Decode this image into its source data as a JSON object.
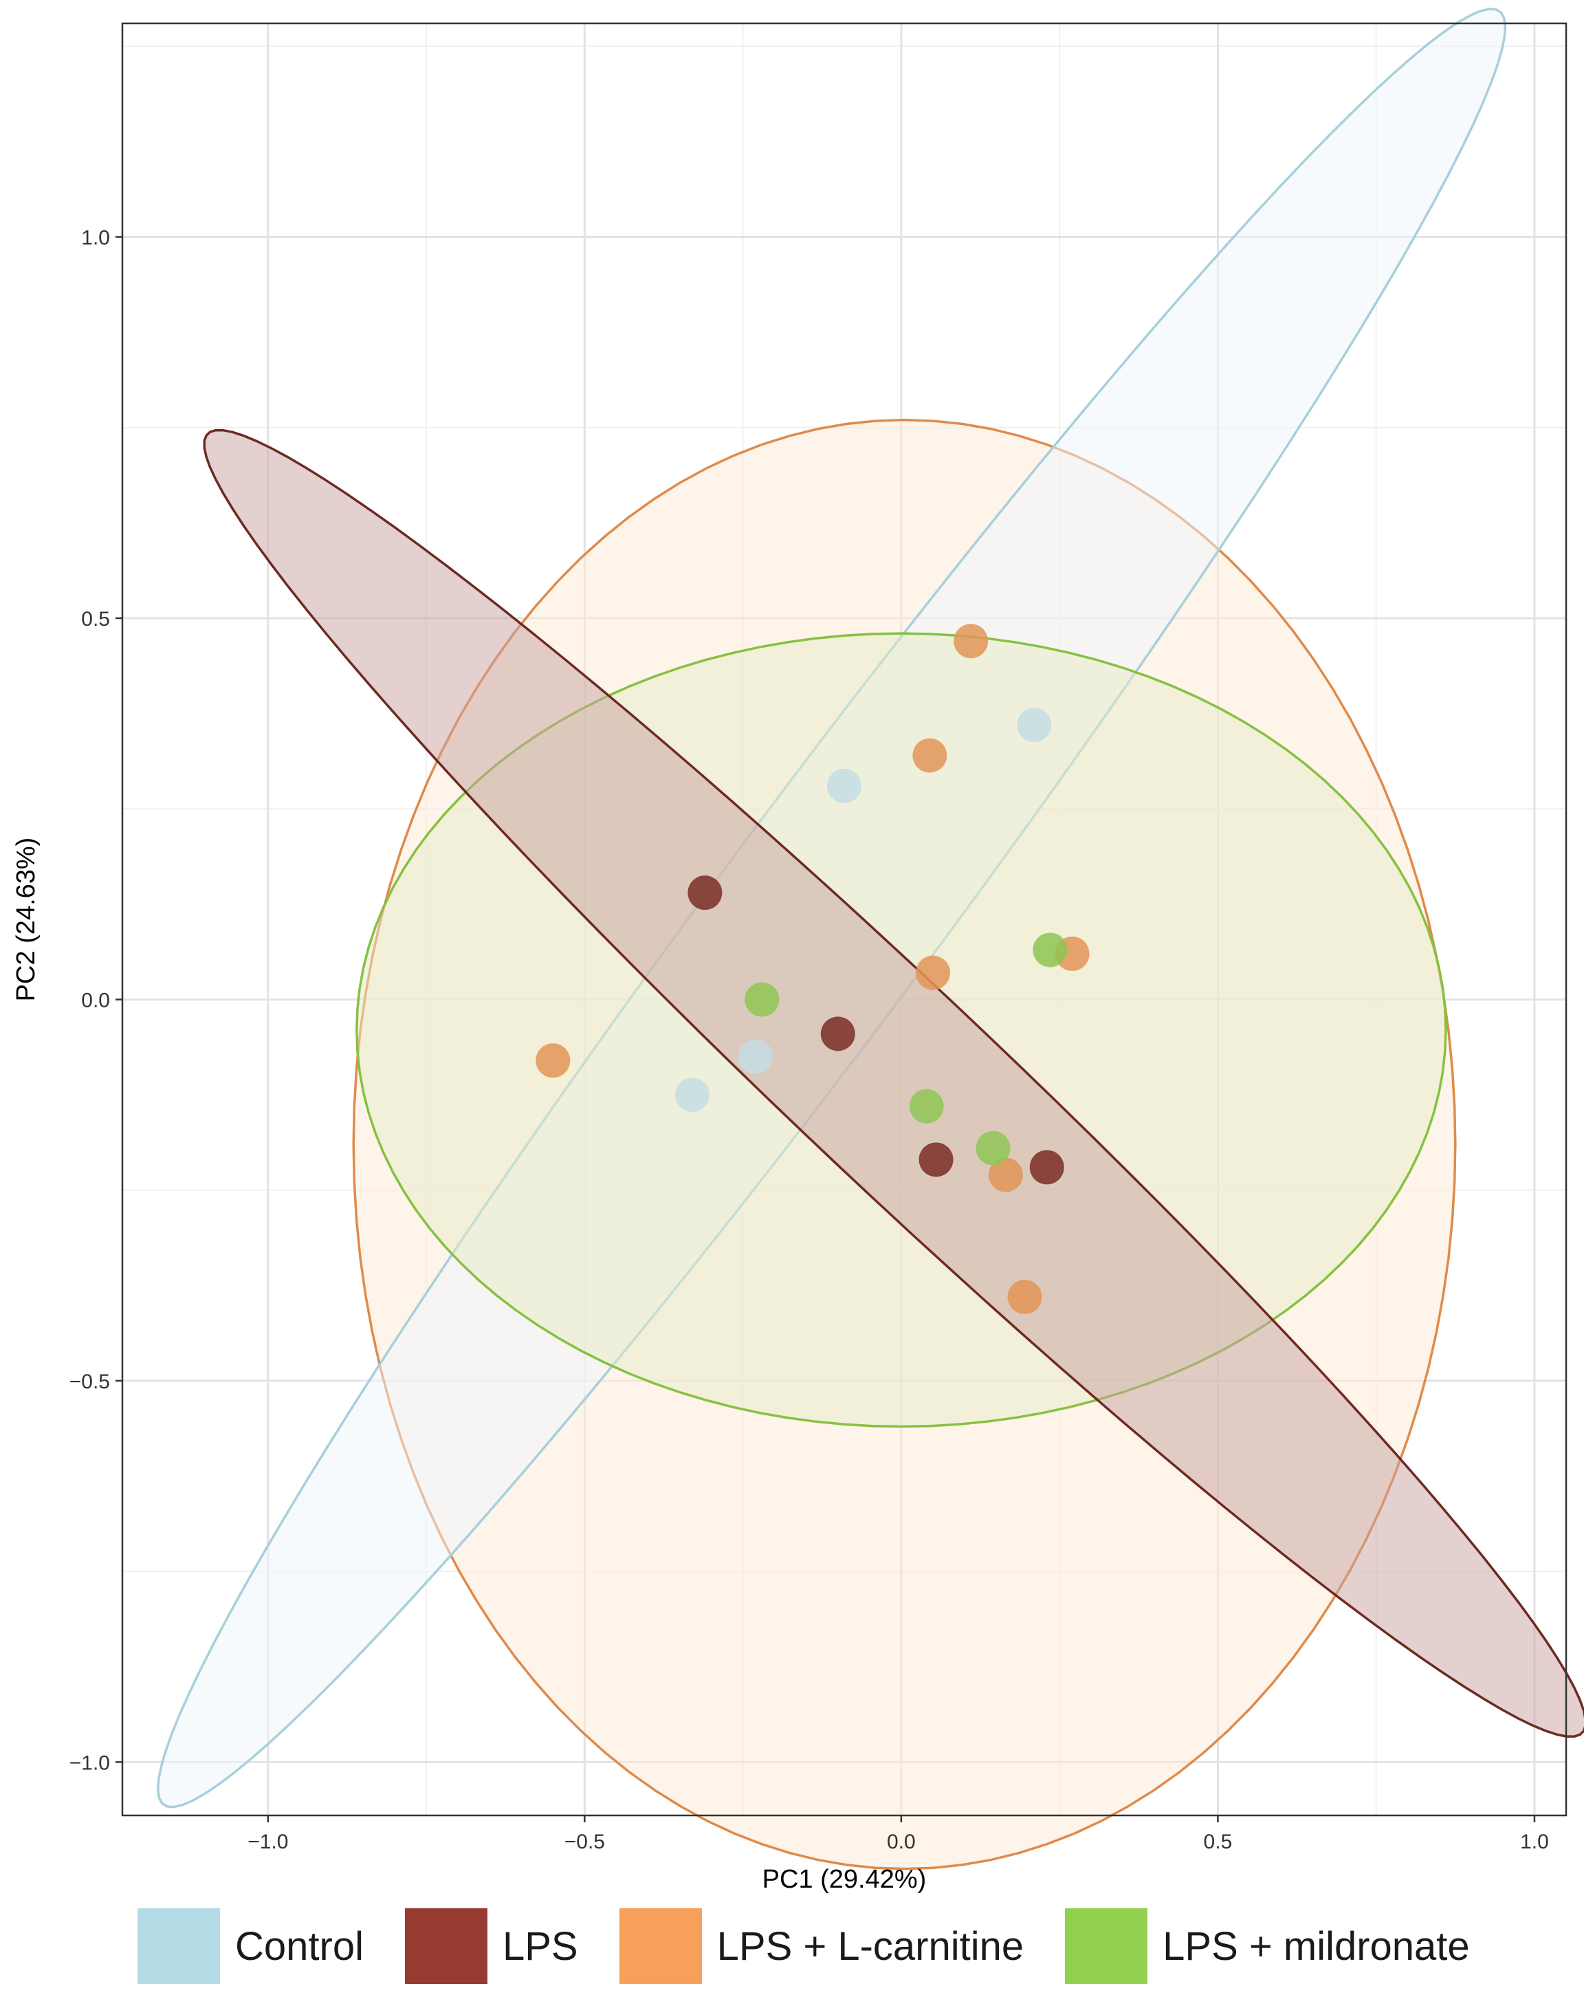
{
  "chart_data": {
    "type": "scatter",
    "title": "",
    "xlabel": "PC1 (29.42%)",
    "ylabel": "PC2 (24.63%)",
    "xlim": [
      -1.23,
      1.05
    ],
    "ylim": [
      -1.07,
      1.28
    ],
    "x_ticks": [
      -1.0,
      -0.5,
      0.0,
      0.5,
      1.0
    ],
    "x_tick_labels": [
      "−1.0",
      "−0.5",
      "0.0",
      "0.5",
      "1.0"
    ],
    "y_ticks": [
      -1.0,
      -0.5,
      0.0,
      0.5,
      1.0
    ],
    "y_tick_labels": [
      "−1.0",
      "−0.5",
      "0.0",
      "0.5",
      "1.0"
    ],
    "grid": true,
    "legend_position": "bottom",
    "series": [
      {
        "name": "Control",
        "color": "#b3d9e6",
        "points": [
          [
            -0.33,
            -0.125
          ],
          [
            -0.23,
            -0.075
          ],
          [
            -0.09,
            0.28
          ],
          [
            0.21,
            0.36
          ]
        ],
        "ellipse": {
          "center": [
            -0.11,
            0.12
          ],
          "semi_major": 1.58,
          "semi_minor": 0.16,
          "angle_deg": 48
        }
      },
      {
        "name": "LPS",
        "color": "#8b2e28",
        "points": [
          [
            -0.31,
            0.14
          ],
          [
            -0.1,
            -0.045
          ],
          [
            0.055,
            -0.21
          ],
          [
            0.23,
            -0.22
          ]
        ],
        "ellipse": {
          "center": [
            -0.01,
            -0.11
          ],
          "semi_major": 1.38,
          "semi_minor": 0.14,
          "angle_deg": -38
        }
      },
      {
        "name": "LPS + L-carnitine",
        "color": "#f5a05a",
        "points": [
          [
            -0.55,
            -0.08
          ],
          [
            0.045,
            0.32
          ],
          [
            0.11,
            0.47
          ],
          [
            0.05,
            0.035
          ],
          [
            0.27,
            0.06
          ],
          [
            0.165,
            -0.23
          ],
          [
            0.195,
            -0.39
          ]
        ],
        "ellipse": {
          "center": [
            0.005,
            -0.19
          ],
          "semi_major": 0.95,
          "semi_minor": 0.87,
          "angle_deg": 90
        }
      },
      {
        "name": "LPS + mildronate",
        "color": "#8ccc4a",
        "points": [
          [
            -0.22,
            0.0
          ],
          [
            0.04,
            -0.14
          ],
          [
            0.145,
            -0.195
          ],
          [
            0.235,
            0.065
          ]
        ],
        "ellipse": {
          "center": [
            0.0,
            -0.04
          ],
          "semi_major": 0.86,
          "semi_minor": 0.52,
          "angle_deg": 0
        }
      }
    ]
  },
  "styles": {
    "ellipse_fill": {
      "Control": "#eef6fb",
      "LPS": "#c8a2a0",
      "LPS + L-carnitine": "#fde9d6",
      "LPS + mildronate": "#e5ebc5"
    },
    "ellipse_stroke": {
      "Control": "#a8cfdc",
      "LPS": "#6e2a22",
      "LPS + L-carnitine": "#e08a4a",
      "LPS + mildronate": "#86c140"
    },
    "point_color": {
      "Control": "#c4dde3",
      "LPS": "#7a2e25",
      "LPS + L-carnitine": "#e39558",
      "LPS + mildronate": "#8ec653"
    },
    "legend_color": {
      "Control": "#b5dbe7",
      "LPS": "#963a32",
      "LPS + L-carnitine": "#f6a05a",
      "LPS + mildronate": "#92d050"
    }
  }
}
